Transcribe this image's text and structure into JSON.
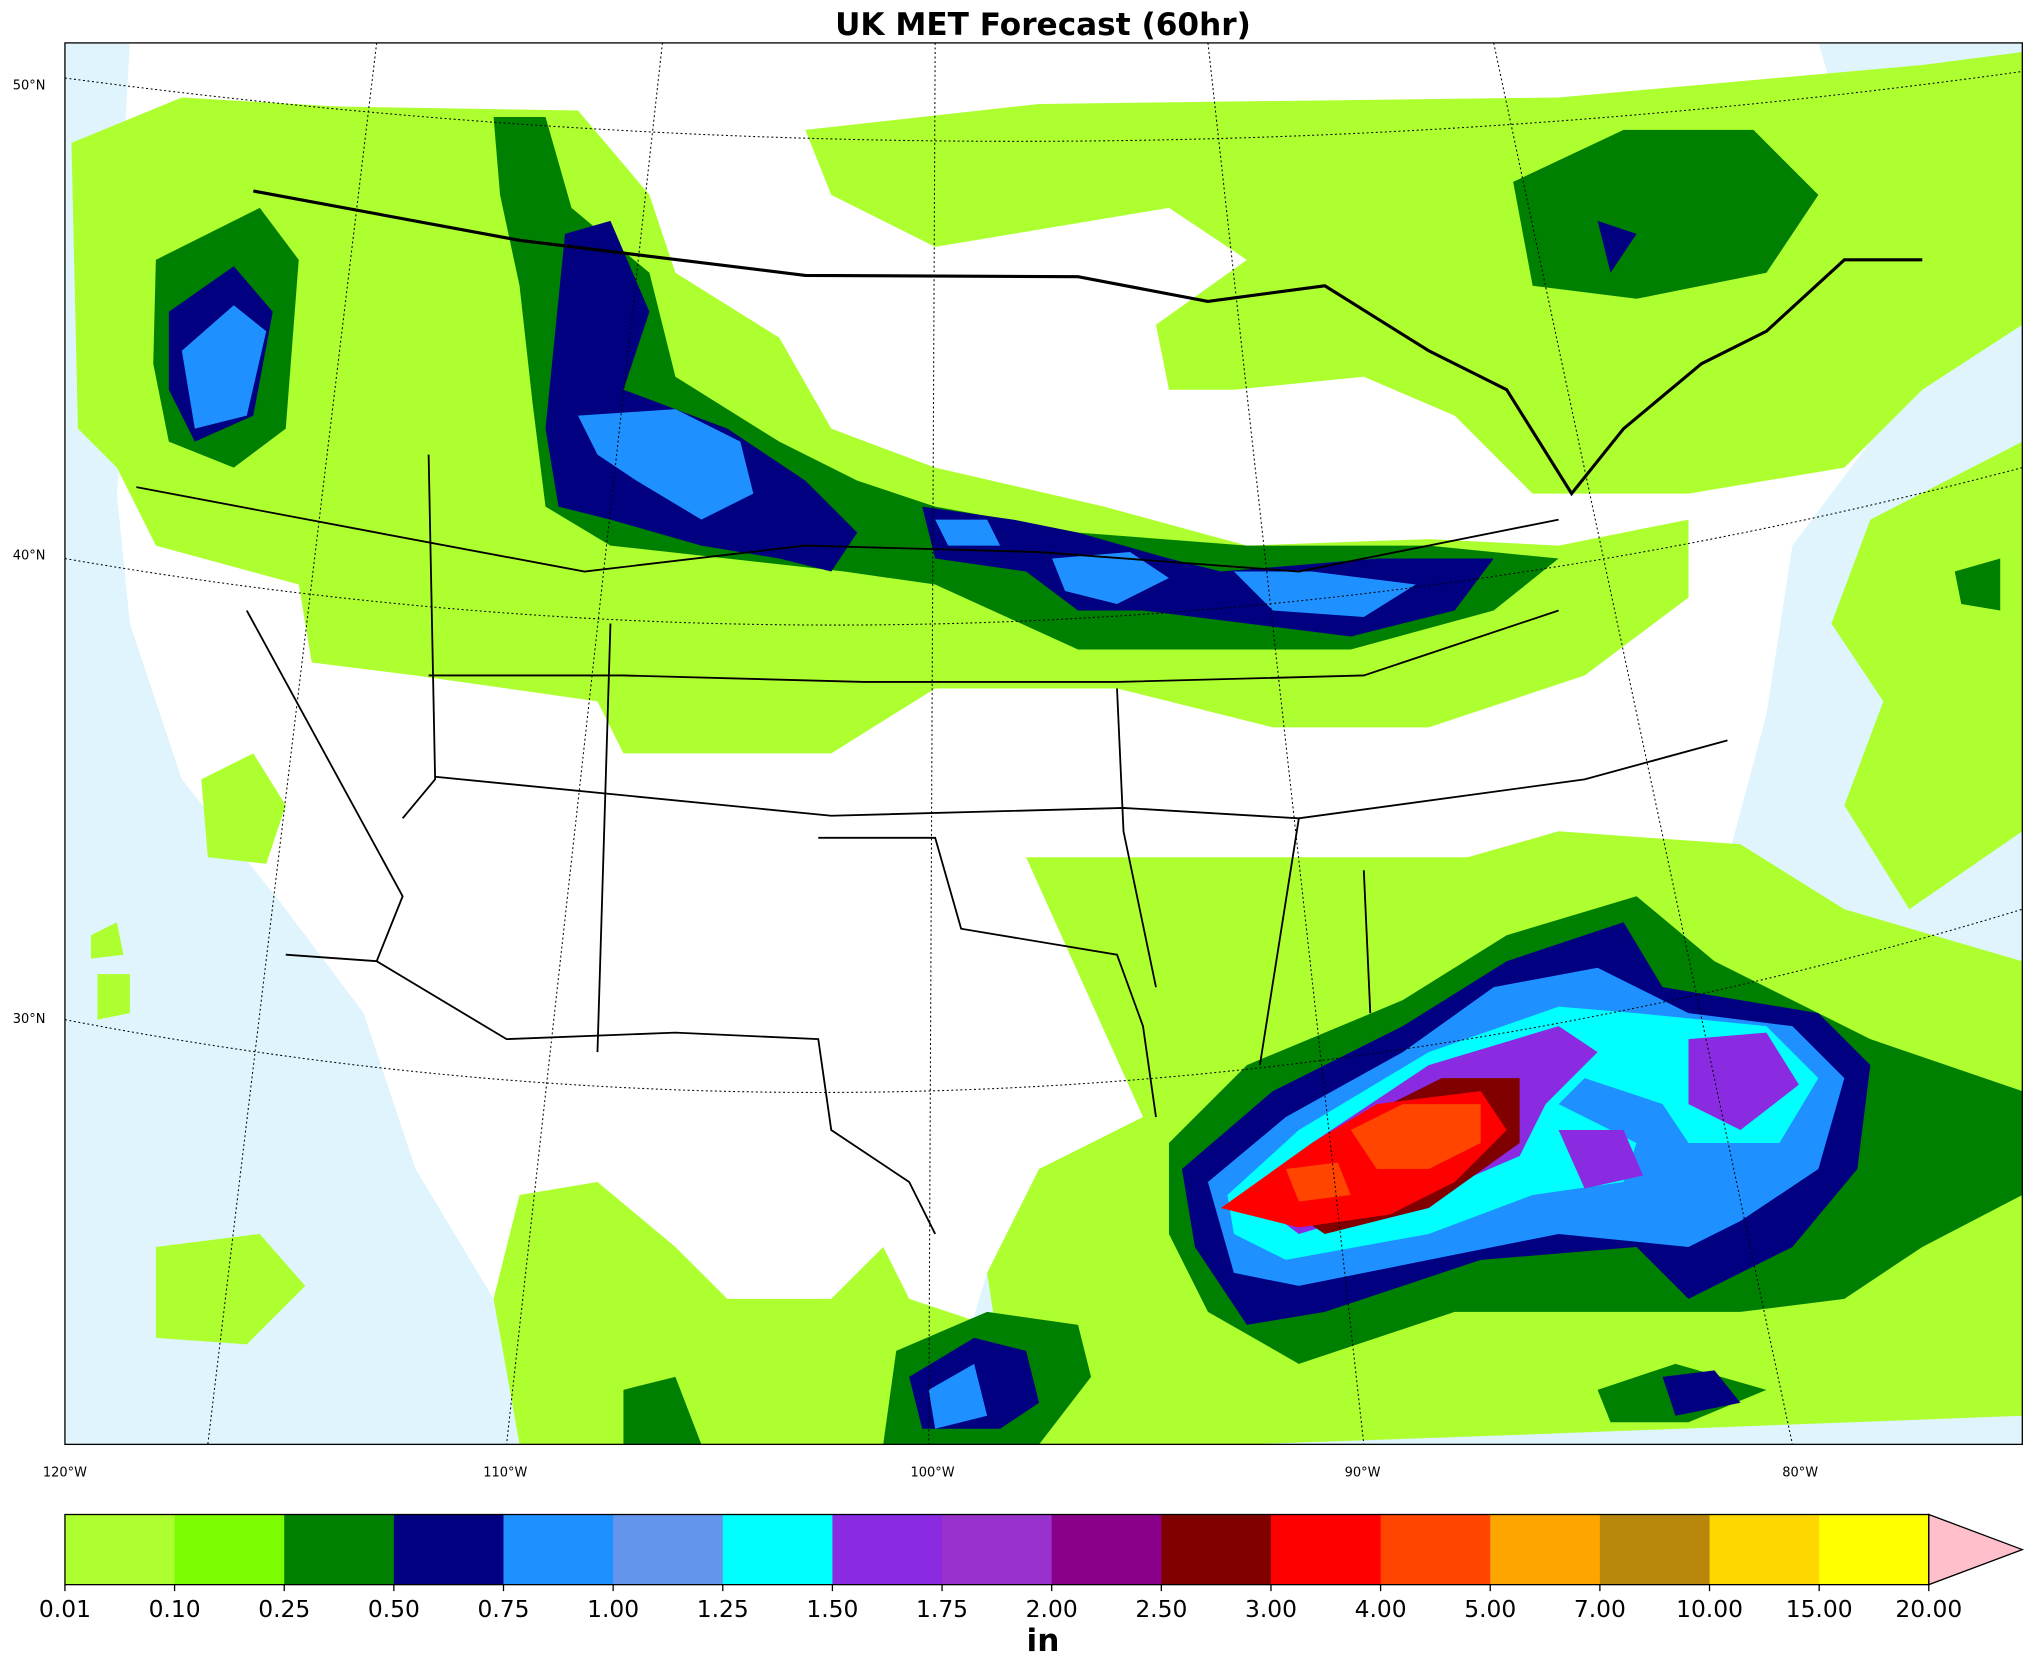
{
  "title": "UK MET Forecast (60hr)",
  "lat_labels": [
    "50°N",
    "40°N",
    "30°N"
  ],
  "lon_labels": [
    "120°W",
    "110°W",
    "100°W",
    "90°W",
    "80°W"
  ],
  "colorbar": {
    "unit": "in",
    "levels": [
      {
        "value": 0.01,
        "label": "0.01"
      },
      {
        "value": 0.1,
        "label": "0.10"
      },
      {
        "value": 0.25,
        "label": "0.25"
      },
      {
        "value": 0.5,
        "label": "0.50"
      },
      {
        "value": 0.75,
        "label": "0.75"
      },
      {
        "value": 1,
        "label": "1.00"
      },
      {
        "value": 1.25,
        "label": "1.25"
      },
      {
        "value": 1.5,
        "label": "1.50"
      },
      {
        "value": 1.75,
        "label": "1.75"
      },
      {
        "value": 2,
        "label": "2.00"
      },
      {
        "value": 2.5,
        "label": "2.50"
      },
      {
        "value": 3,
        "label": "3.00"
      },
      {
        "value": 4,
        "label": "4.00"
      },
      {
        "value": 5,
        "label": "5.00"
      },
      {
        "value": 7,
        "label": "7.00"
      },
      {
        "value": 10,
        "label": "10.00"
      },
      {
        "value": 15,
        "label": "15.00"
      },
      {
        "value": 20,
        "label": "20.00"
      }
    ],
    "colors": [
      "#adff2f",
      "#7cfc00",
      "#008000",
      "#000080",
      "#1e90ff",
      "#6495ed",
      "#00ffff",
      "#8a2be2",
      "#9932cc",
      "#8b008b",
      "#800000",
      "#ff0000",
      "#ff4500",
      "#ffa500",
      "#b8860b",
      "#ffd700",
      "#ffff00"
    ],
    "extend_color": "#ffc0cb"
  }
}
